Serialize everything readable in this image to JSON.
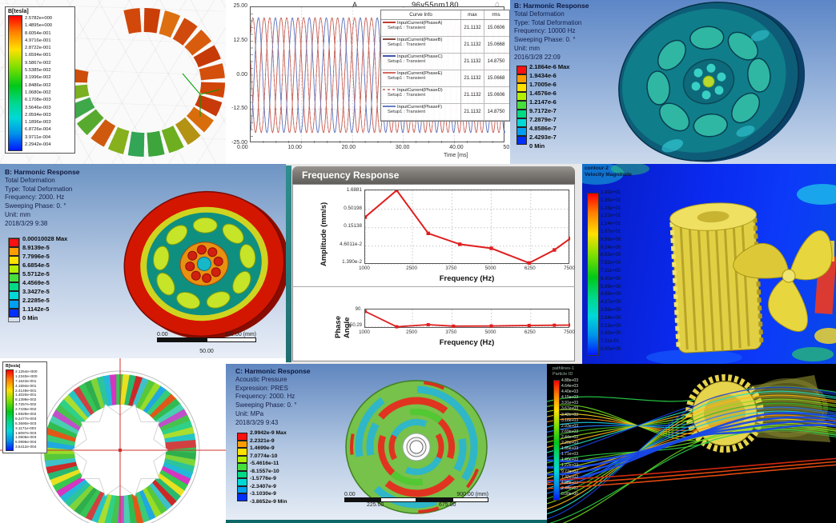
{
  "panels": {
    "maxwell_stator": {
      "legend_title": "B[tesla]",
      "legend_values": [
        "2.5782e+000",
        "1.4895e+000",
        "8.6054e-001",
        "4.9716e-001",
        "2.8722e-001",
        "1.6594e-001",
        "9.5867e-002",
        "5.5385e-002",
        "3.1996e-002",
        "1.8486e-002",
        "1.0680e-002",
        "6.1708e-003",
        "3.5646e-003",
        "2.0594e-003",
        "1.1896e-003",
        "6.8726e-004",
        "3.9711e-004",
        "2.2942e-004"
      ]
    },
    "current_plot": {
      "corner_label": "A",
      "title": "96v55nm180",
      "xlabel": "Time [ms]",
      "yticks": [
        "25.00",
        "12.50",
        "0.00",
        "-12.50",
        "-25.00"
      ],
      "xticks": [
        "0.00",
        "10.00",
        "20.00",
        "30.00",
        "40.00",
        "50.00"
      ],
      "legend_headers": {
        "info": "Curve Info",
        "max": "max",
        "rms": "rms"
      }
    },
    "harmonic_right": {
      "title": "B: Harmonic Response",
      "lines": [
        "Total Deformation",
        "Type: Total Deformation",
        "Frequency: 10000 Hz",
        "Sweeping Phase: 0. °",
        "Unit: mm",
        "2016/3/28 22:09"
      ],
      "legend_values": [
        "2.1864e-6 Max",
        "1.9434e-6",
        "1.7005e-6",
        "1.4576e-6",
        "1.2147e-6",
        "9.7172e-7",
        "7.2879e-7",
        "4.8586e-7",
        "2.4293e-7",
        "0 Min"
      ]
    },
    "harmonic_left": {
      "title": "B: Harmonic Response",
      "lines": [
        "Total Deformation",
        "Type: Total Deformation",
        "Frequency: 2000. Hz",
        "Sweeping Phase: 0. °",
        "Unit: mm",
        "2018/3/29 9:38"
      ],
      "legend_values": [
        "0.00010028 Max",
        "8.9139e-5",
        "7.7996e-5",
        "6.6854e-5",
        "5.5712e-5",
        "4.4569e-5",
        "3.3427e-5",
        "2.2285e-5",
        "1.1142e-5",
        "0 Min"
      ],
      "ruler": {
        "start": "0.00",
        "end": "100.00 (mm)",
        "mid": "50.00"
      }
    },
    "freq_response": {
      "window_title": "Frequency Response",
      "amp_ylabel": "Amplitude (mm/s)",
      "phase_ylabel": "Phase Angle",
      "xlabel_top": "Frequency (Hz)",
      "xlabel_bottom": "Frequency (Hz)",
      "amp_yticks": [
        "1.6881",
        "0.50198",
        "0.15138",
        "4.6011e-2",
        "1.390e-2"
      ],
      "phase_yticks": [
        "90.",
        "-150.29"
      ]
    },
    "cfd_contour": {
      "header1": "contour-2",
      "header2": "Velocity Magnitude",
      "legend_values": [
        "1.42e+01",
        "1.35e+01",
        "1.28e+01",
        "1.21e+01",
        "1.14e+01",
        "1.07e+01",
        "9.96e+00",
        "9.24e+00",
        "8.53e+00",
        "7.82e+00",
        "7.11e+00",
        "6.40e+00",
        "5.69e+00",
        "4.98e+00",
        "4.27e+00",
        "3.56e+00",
        "2.84e+00",
        "2.13e+00",
        "1.42e+00",
        "7.11e-01",
        "0.00e+00"
      ]
    },
    "rotor_field": {
      "legend_title": "B[tesla]",
      "legend_values": [
        "2.1254e+000",
        "1.2340e+000",
        "7.1643e-001",
        "4.1594e-001",
        "2.4149e-001",
        "1.4020e-001",
        "8.1399e-002",
        "4.7257e-002",
        "2.7436e-002",
        "1.5929e-002",
        "9.2477e-003",
        "5.3690e-003",
        "3.1171e-003",
        "1.8097e-003",
        "1.0506e-003",
        "6.0996e-004",
        "3.5412e-004"
      ]
    },
    "acoustic": {
      "title": "C: Harmonic Response",
      "lines": [
        "Acoustic Pressure",
        "Expression: PRES",
        "Frequency: 2000. Hz",
        "Sweeping Phase: 0. °",
        "Unit: MPa",
        "2018/3/29 9:43"
      ],
      "legend_values": [
        "2.9942e-9 Max",
        "2.2321e-9",
        "1.4699e-9",
        "7.0774e-10",
        "-5.4616e-11",
        "-8.1557e-10",
        "-1.5776e-9",
        "-2.3407e-9",
        "-3.1030e-9",
        "-3.8652e-9 Min"
      ],
      "ruler": {
        "start": "0.00",
        "end": "900.00 (mm)",
        "q1": "225.00",
        "q3": "675.00"
      }
    },
    "pathlines": {
      "header1": "pathlines-1",
      "header2": "Particle ID",
      "legend_values": [
        "4.88e+03",
        "4.64e+03",
        "4.40e+03",
        "4.15e+03",
        "3.91e+03",
        "3.67e+03",
        "3.42e+03",
        "3.18e+03",
        "2.93e+03",
        "2.69e+03",
        "2.44e+03",
        "2.20e+03",
        "1.95e+03",
        "1.71e+03",
        "1.46e+03",
        "1.22e+03",
        "9.77e+02",
        "7.32e+02",
        "4.88e+02",
        "2.44e+02",
        "0.00e+00"
      ]
    }
  },
  "colors": {
    "ansys_bands": [
      "#ff1010",
      "#ff9d00",
      "#ffe100",
      "#b3f000",
      "#46e03c",
      "#00d985",
      "#00d8d8",
      "#009ff0",
      "#0030ff"
    ]
  },
  "chart_data": [
    {
      "type": "line",
      "title": "96v55nm180",
      "xlabel": "Time [ms]",
      "xlim": [
        0,
        50
      ],
      "ylim": [
        -25,
        25
      ],
      "xticks": [
        0,
        10,
        20,
        30,
        40,
        50
      ],
      "yticks": [
        25,
        12.5,
        0,
        -12.5,
        -25
      ],
      "waveform": "sinusoid",
      "period_ms": 3.333,
      "legend_position": "top-right",
      "series": [
        {
          "name": "InputCurrent(PhaseA)",
          "setup": "Setup1 : Transient",
          "amplitude": 21.1132,
          "phase_deg": 45,
          "max": "21.1132",
          "rms": "15.0606",
          "style": "solid",
          "stroke": "#c23b2e",
          "swatch": "#c23b2e"
        },
        {
          "name": "InputCurrent(PhaseB)",
          "setup": "Setup1 : Transient",
          "amplitude": 21.1132,
          "phase_deg": 165,
          "max": "21.1132",
          "rms": "15.0668",
          "style": "solid",
          "stroke": "#8a4a42",
          "swatch": "#8a4a42"
        },
        {
          "name": "InputCurrent(PhaseC)",
          "setup": "Setup1 : Transient",
          "amplitude": 21.1132,
          "phase_deg": -75,
          "max": "21.1132",
          "rms": "14.8750",
          "style": "solid",
          "stroke": "#4256a8",
          "swatch": "#4256a8"
        },
        {
          "name": "InputCurrent(PhaseE)",
          "setup": "Setup1 : Transient",
          "amplitude": 21.1132,
          "phase_deg": 165,
          "max": "21.1132",
          "rms": "15.0668",
          "style": "solid",
          "stroke": "#d4695f",
          "swatch": "#d4695f"
        },
        {
          "name": "InputCurrent(PhaseD)",
          "setup": "Setup1 : Transient",
          "amplitude": 21.1132,
          "phase_deg": 45,
          "max": "21.1132",
          "rms": "15.0606",
          "style": "dashed",
          "stroke": "#c98f8a",
          "swatch": "repeating-linear-gradient(90deg,#c98f8a 0 3px,transparent 3px 6px)"
        },
        {
          "name": "InputCurrent(PhaseF)",
          "setup": "Setup1 : Transient",
          "amplitude": 21.1132,
          "phase_deg": -75,
          "max": "21.1132",
          "rms": "14.8750",
          "style": "solid",
          "stroke": "#6b7fc4",
          "swatch": "#6b7fc4"
        }
      ]
    },
    {
      "type": "line",
      "name": "amplitude_response",
      "ylabel": "Amplitude (mm/s)",
      "xlabel": "Frequency (Hz)",
      "yscale": "log",
      "ytick_values": [
        1.6881,
        0.50198,
        0.15138,
        0.046011,
        0.0139
      ],
      "xticks": [
        1000,
        2500,
        3750,
        5000,
        6250,
        7500
      ],
      "x": [
        1000,
        2000,
        3000,
        4000,
        5000,
        6200,
        7000,
        7500
      ],
      "y": [
        0.3,
        1.6881,
        0.105,
        0.052,
        0.04,
        0.0155,
        0.036,
        0.075
      ],
      "color": "#df1f1f"
    },
    {
      "type": "line",
      "name": "phase_response",
      "ylabel": "Phase Angle",
      "xlabel": "Frequency (Hz)",
      "ytick_values": [
        90,
        -150.29
      ],
      "ylim": [
        -180,
        120
      ],
      "xticks": [
        1000,
        2500,
        3750,
        5000,
        6250,
        7500
      ],
      "x": [
        1000,
        2000,
        3000,
        3800,
        5000,
        6200,
        7000,
        7500
      ],
      "y": [
        90,
        -150.29,
        -118,
        -140,
        -137,
        -130,
        -126,
        -124
      ],
      "color": "#df1f1f"
    }
  ]
}
